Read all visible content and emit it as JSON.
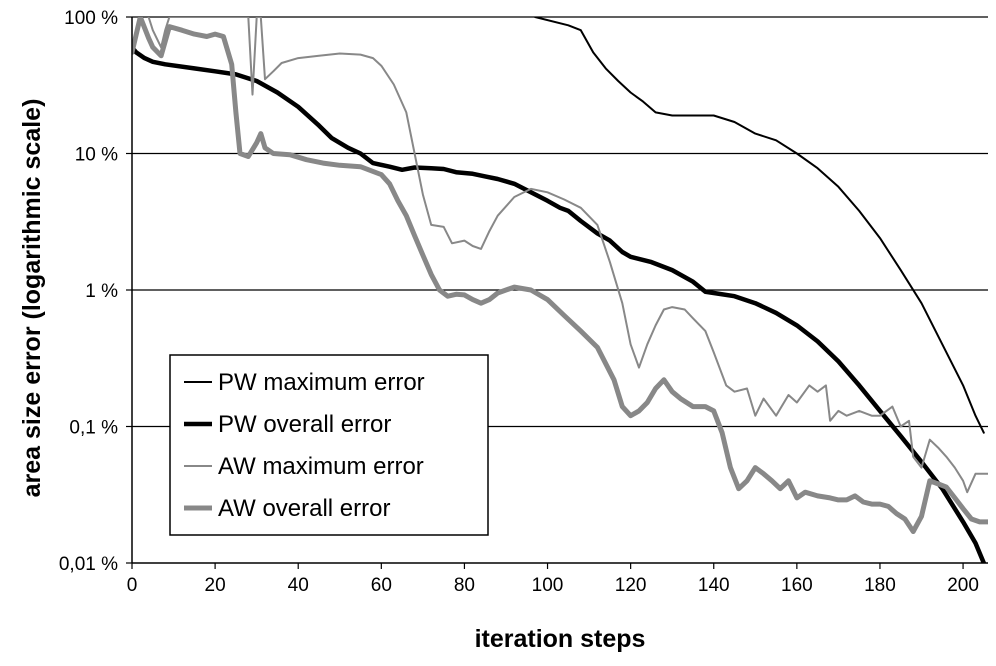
{
  "chart_data": {
    "type": "line",
    "title": "",
    "xlabel": "iteration steps",
    "ylabel": "area size error (logarithmic scale)",
    "xlim": [
      0,
      206
    ],
    "ylim": [
      0.01,
      100
    ],
    "yscale": "log",
    "grid": "horizontal major lines",
    "legend_position": "bottom-left",
    "x_ticks": [
      0,
      20,
      40,
      60,
      80,
      100,
      120,
      140,
      160,
      180,
      200
    ],
    "x_tick_labels": [
      "0",
      "20",
      "40",
      "60",
      "80",
      "100",
      "120",
      "140",
      "160",
      "180",
      "200"
    ],
    "y_ticks": [
      0.01,
      0.1,
      1,
      10,
      100
    ],
    "y_tick_labels": [
      "0,01 %",
      "0,1 %",
      "1 %",
      "10 %",
      "100 %"
    ],
    "series": [
      {
        "name": "PW maximum error",
        "color": "#000000",
        "width": 2,
        "points": [
          [
            97,
            100
          ],
          [
            105,
            87
          ],
          [
            108,
            80
          ],
          [
            111,
            55
          ],
          [
            114,
            42
          ],
          [
            117,
            34
          ],
          [
            120,
            28
          ],
          [
            123,
            24
          ],
          [
            126,
            20
          ],
          [
            130,
            19
          ],
          [
            140,
            19
          ],
          [
            145,
            17
          ],
          [
            150,
            14
          ],
          [
            155,
            12.5
          ],
          [
            160,
            10
          ],
          [
            165,
            7.8
          ],
          [
            170,
            5.7
          ],
          [
            175,
            3.8
          ],
          [
            180,
            2.4
          ],
          [
            185,
            1.4
          ],
          [
            190,
            0.8
          ],
          [
            195,
            0.4
          ],
          [
            200,
            0.2
          ],
          [
            203,
            0.12
          ],
          [
            205,
            0.09
          ]
        ]
      },
      {
        "name": "PW overall error",
        "color": "#000000",
        "width": 4.5,
        "points": [
          [
            0,
            60
          ],
          [
            1,
            55
          ],
          [
            3,
            50
          ],
          [
            5,
            47
          ],
          [
            8,
            45
          ],
          [
            15,
            42
          ],
          [
            20,
            40
          ],
          [
            25,
            38
          ],
          [
            30,
            34
          ],
          [
            35,
            28
          ],
          [
            40,
            22
          ],
          [
            45,
            16
          ],
          [
            48,
            13
          ],
          [
            52,
            11
          ],
          [
            55,
            10
          ],
          [
            58,
            8.5
          ],
          [
            62,
            8
          ],
          [
            65,
            7.6
          ],
          [
            68,
            7.9
          ],
          [
            72,
            7.8
          ],
          [
            75,
            7.7
          ],
          [
            78,
            7.3
          ],
          [
            82,
            7.1
          ],
          [
            85,
            6.8
          ],
          [
            88,
            6.5
          ],
          [
            92,
            6
          ],
          [
            96,
            5.2
          ],
          [
            100,
            4.5
          ],
          [
            103,
            4
          ],
          [
            105,
            3.8
          ],
          [
            108,
            3.2
          ],
          [
            112,
            2.6
          ],
          [
            115,
            2.3
          ],
          [
            118,
            1.9
          ],
          [
            120,
            1.75
          ],
          [
            125,
            1.6
          ],
          [
            130,
            1.4
          ],
          [
            135,
            1.15
          ],
          [
            138,
            0.97
          ],
          [
            140,
            0.95
          ],
          [
            145,
            0.9
          ],
          [
            150,
            0.8
          ],
          [
            155,
            0.68
          ],
          [
            160,
            0.55
          ],
          [
            165,
            0.42
          ],
          [
            170,
            0.3
          ],
          [
            175,
            0.2
          ],
          [
            180,
            0.13
          ],
          [
            185,
            0.085
          ],
          [
            190,
            0.055
          ],
          [
            195,
            0.035
          ],
          [
            200,
            0.02
          ],
          [
            203,
            0.014
          ],
          [
            205,
            0.01
          ]
        ]
      },
      {
        "name": "AW maximum error",
        "color": "#888888",
        "width": 2,
        "points": [
          [
            4,
            100
          ],
          [
            5,
            80
          ],
          [
            7,
            60
          ],
          [
            8,
            80
          ],
          [
            9,
            100
          ],
          [
            28,
            100
          ],
          [
            29,
            27
          ],
          [
            30,
            100
          ],
          [
            31,
            100
          ],
          [
            32,
            35
          ],
          [
            34,
            40
          ],
          [
            36,
            46
          ],
          [
            40,
            50
          ],
          [
            45,
            52
          ],
          [
            50,
            54
          ],
          [
            55,
            53
          ],
          [
            58,
            50
          ],
          [
            60,
            44
          ],
          [
            63,
            32
          ],
          [
            66,
            20
          ],
          [
            68,
            10
          ],
          [
            70,
            5
          ],
          [
            72,
            3
          ],
          [
            75,
            2.9
          ],
          [
            77,
            2.2
          ],
          [
            80,
            2.3
          ],
          [
            82,
            2.1
          ],
          [
            84,
            2
          ],
          [
            86,
            2.7
          ],
          [
            88,
            3.5
          ],
          [
            92,
            4.8
          ],
          [
            96,
            5.5
          ],
          [
            100,
            5.2
          ],
          [
            104,
            4.6
          ],
          [
            108,
            4
          ],
          [
            112,
            3
          ],
          [
            115,
            1.6
          ],
          [
            118,
            0.8
          ],
          [
            120,
            0.4
          ],
          [
            122,
            0.27
          ],
          [
            124,
            0.4
          ],
          [
            126,
            0.55
          ],
          [
            128,
            0.72
          ],
          [
            130,
            0.75
          ],
          [
            133,
            0.72
          ],
          [
            135,
            0.62
          ],
          [
            138,
            0.5
          ],
          [
            140,
            0.35
          ],
          [
            143,
            0.2
          ],
          [
            145,
            0.18
          ],
          [
            148,
            0.19
          ],
          [
            150,
            0.12
          ],
          [
            152,
            0.16
          ],
          [
            155,
            0.12
          ],
          [
            158,
            0.17
          ],
          [
            160,
            0.15
          ],
          [
            163,
            0.2
          ],
          [
            165,
            0.18
          ],
          [
            167,
            0.2
          ],
          [
            168,
            0.11
          ],
          [
            170,
            0.13
          ],
          [
            172,
            0.12
          ],
          [
            175,
            0.13
          ],
          [
            178,
            0.12
          ],
          [
            180,
            0.12
          ],
          [
            183,
            0.14
          ],
          [
            185,
            0.1
          ],
          [
            187,
            0.11
          ],
          [
            188,
            0.06
          ],
          [
            190,
            0.05
          ],
          [
            192,
            0.08
          ],
          [
            194,
            0.07
          ],
          [
            196,
            0.06
          ],
          [
            198,
            0.05
          ],
          [
            200,
            0.04
          ],
          [
            201,
            0.033
          ],
          [
            203,
            0.045
          ],
          [
            206,
            0.045
          ]
        ]
      },
      {
        "name": "AW overall error",
        "color": "#888888",
        "width": 5,
        "points": [
          [
            0,
            55
          ],
          [
            2,
            100
          ],
          [
            4,
            70
          ],
          [
            5,
            60
          ],
          [
            7,
            52
          ],
          [
            9,
            85
          ],
          [
            12,
            80
          ],
          [
            15,
            75
          ],
          [
            18,
            72
          ],
          [
            20,
            75
          ],
          [
            22,
            72
          ],
          [
            24,
            45
          ],
          [
            25,
            20
          ],
          [
            26,
            10
          ],
          [
            28,
            9.5
          ],
          [
            30,
            12
          ],
          [
            31,
            14
          ],
          [
            32,
            11
          ],
          [
            34,
            10
          ],
          [
            38,
            9.8
          ],
          [
            42,
            9
          ],
          [
            46,
            8.5
          ],
          [
            50,
            8.2
          ],
          [
            55,
            8
          ],
          [
            60,
            7
          ],
          [
            62,
            6
          ],
          [
            64,
            4.5
          ],
          [
            66,
            3.5
          ],
          [
            68,
            2.5
          ],
          [
            70,
            1.8
          ],
          [
            72,
            1.3
          ],
          [
            74,
            1
          ],
          [
            76,
            0.9
          ],
          [
            78,
            0.93
          ],
          [
            80,
            0.92
          ],
          [
            82,
            0.85
          ],
          [
            84,
            0.8
          ],
          [
            86,
            0.85
          ],
          [
            88,
            0.95
          ],
          [
            90,
            1
          ],
          [
            92,
            1.05
          ],
          [
            96,
            1
          ],
          [
            100,
            0.85
          ],
          [
            104,
            0.65
          ],
          [
            108,
            0.5
          ],
          [
            112,
            0.38
          ],
          [
            116,
            0.22
          ],
          [
            118,
            0.14
          ],
          [
            120,
            0.12
          ],
          [
            122,
            0.13
          ],
          [
            124,
            0.15
          ],
          [
            126,
            0.19
          ],
          [
            128,
            0.22
          ],
          [
            130,
            0.18
          ],
          [
            132,
            0.16
          ],
          [
            135,
            0.14
          ],
          [
            138,
            0.14
          ],
          [
            140,
            0.13
          ],
          [
            142,
            0.09
          ],
          [
            144,
            0.05
          ],
          [
            146,
            0.035
          ],
          [
            148,
            0.04
          ],
          [
            150,
            0.05
          ],
          [
            152,
            0.045
          ],
          [
            154,
            0.04
          ],
          [
            156,
            0.035
          ],
          [
            158,
            0.04
          ],
          [
            160,
            0.03
          ],
          [
            162,
            0.033
          ],
          [
            165,
            0.031
          ],
          [
            168,
            0.03
          ],
          [
            170,
            0.029
          ],
          [
            172,
            0.029
          ],
          [
            174,
            0.031
          ],
          [
            176,
            0.028
          ],
          [
            178,
            0.027
          ],
          [
            180,
            0.027
          ],
          [
            182,
            0.026
          ],
          [
            184,
            0.023
          ],
          [
            186,
            0.021
          ],
          [
            188,
            0.017
          ],
          [
            190,
            0.022
          ],
          [
            192,
            0.04
          ],
          [
            194,
            0.038
          ],
          [
            196,
            0.036
          ],
          [
            198,
            0.03
          ],
          [
            200,
            0.025
          ],
          [
            202,
            0.021
          ],
          [
            204,
            0.02
          ],
          [
            206,
            0.02
          ]
        ]
      }
    ]
  }
}
